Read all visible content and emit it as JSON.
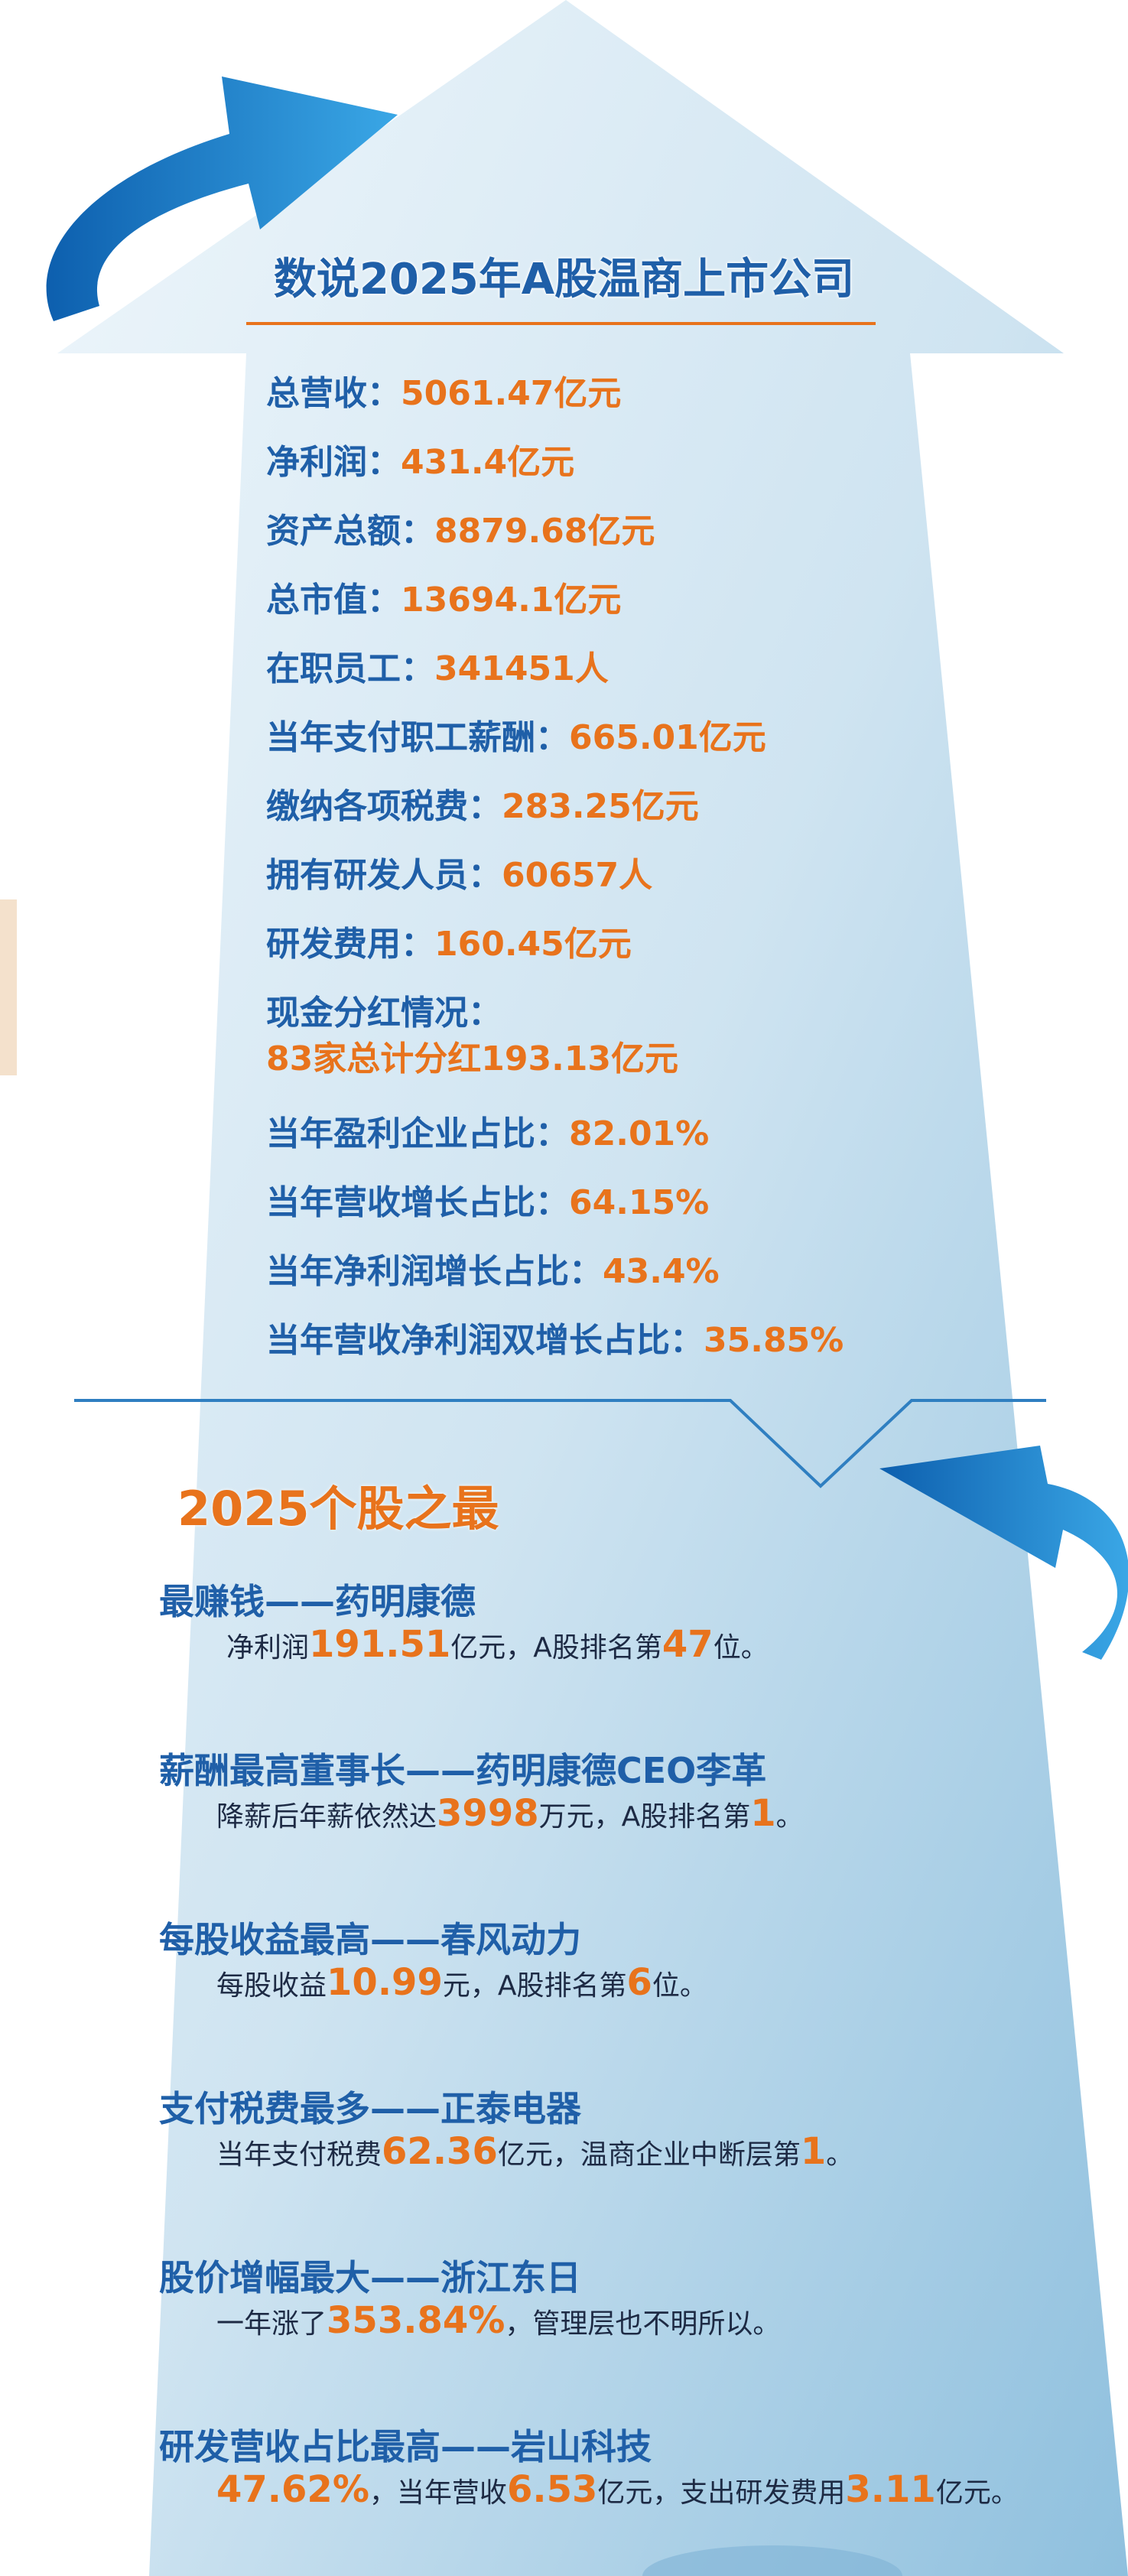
{
  "title": "数说2025年A股温商上市公司",
  "stats": [
    {
      "label": "总营收：",
      "value": "5061.47亿元"
    },
    {
      "label": "净利润：",
      "value": "431.4亿元"
    },
    {
      "label": "资产总额：",
      "value": "8879.68亿元"
    },
    {
      "label": "总市值：",
      "value": "13694.1亿元"
    },
    {
      "label": "在职员工：",
      "value": "341451人"
    },
    {
      "label": "当年支付职工薪酬：",
      "value": "665.01亿元"
    },
    {
      "label": "缴纳各项税费：",
      "value": "283.25亿元"
    },
    {
      "label": "拥有研发人员：",
      "value": "60657人"
    },
    {
      "label": "研发费用：",
      "value": "160.45亿元"
    },
    {
      "label": "现金分红情况：",
      "value": "83家总计分红193.13亿元",
      "newline": true
    },
    {
      "label": "当年盈利企业占比：",
      "value": "82.01%"
    },
    {
      "label": "当年营收增长占比：",
      "value": "64.15%"
    },
    {
      "label": "当年净利润增长占比：",
      "value": "43.4%"
    },
    {
      "label": "当年营收净利润双增长占比：",
      "value": "35.85%"
    }
  ],
  "section_title": "2025个股之最",
  "records": [
    {
      "title": "最赚钱——药明康德",
      "parts": [
        {
          "text": "净利润",
          "style": "plain"
        },
        {
          "text": "191.51",
          "style": "number"
        },
        {
          "text": "亿元，A股排名第",
          "style": "plain"
        },
        {
          "text": "47",
          "style": "number"
        },
        {
          "text": "位。",
          "style": "plain"
        }
      ]
    },
    {
      "title": "薪酬最高董事长——药明康德CEO李革",
      "parts": [
        {
          "text": "降薪后年薪依然达",
          "style": "plain"
        },
        {
          "text": "3998",
          "style": "number"
        },
        {
          "text": "万元，A股排名第",
          "style": "plain"
        },
        {
          "text": "1",
          "style": "number"
        },
        {
          "text": "。",
          "style": "plain"
        }
      ]
    },
    {
      "title": "每股收益最高——春风动力",
      "parts": [
        {
          "text": "每股收益",
          "style": "plain"
        },
        {
          "text": "10.99",
          "style": "number"
        },
        {
          "text": "元，A股排名第",
          "style": "plain"
        },
        {
          "text": "6",
          "style": "number"
        },
        {
          "text": "位。",
          "style": "plain"
        }
      ]
    },
    {
      "title": "支付税费最多——正泰电器",
      "parts": [
        {
          "text": "当年支付税费",
          "style": "plain"
        },
        {
          "text": "62.36",
          "style": "number"
        },
        {
          "text": "亿元，温商企业中断层第",
          "style": "plain"
        },
        {
          "text": "1",
          "style": "number"
        },
        {
          "text": "。",
          "style": "plain"
        }
      ]
    },
    {
      "title": "股价增幅最大——浙江东日",
      "parts": [
        {
          "text": "一年涨了",
          "style": "plain"
        },
        {
          "text": "353.84%",
          "style": "number"
        },
        {
          "text": "，管理层也不明所以。",
          "style": "plain"
        }
      ]
    },
    {
      "title": "研发营收占比最高——岩山科技",
      "parts": [
        {
          "text": "47.62%",
          "style": "number"
        },
        {
          "text": "，当年营收",
          "style": "plain"
        },
        {
          "text": "6.53",
          "style": "number"
        },
        {
          "text": "亿元，支出研发费用",
          "style": "plain"
        },
        {
          "text": "3.11",
          "style": "number"
        },
        {
          "text": "亿元。",
          "style": "plain"
        }
      ]
    }
  ]
}
